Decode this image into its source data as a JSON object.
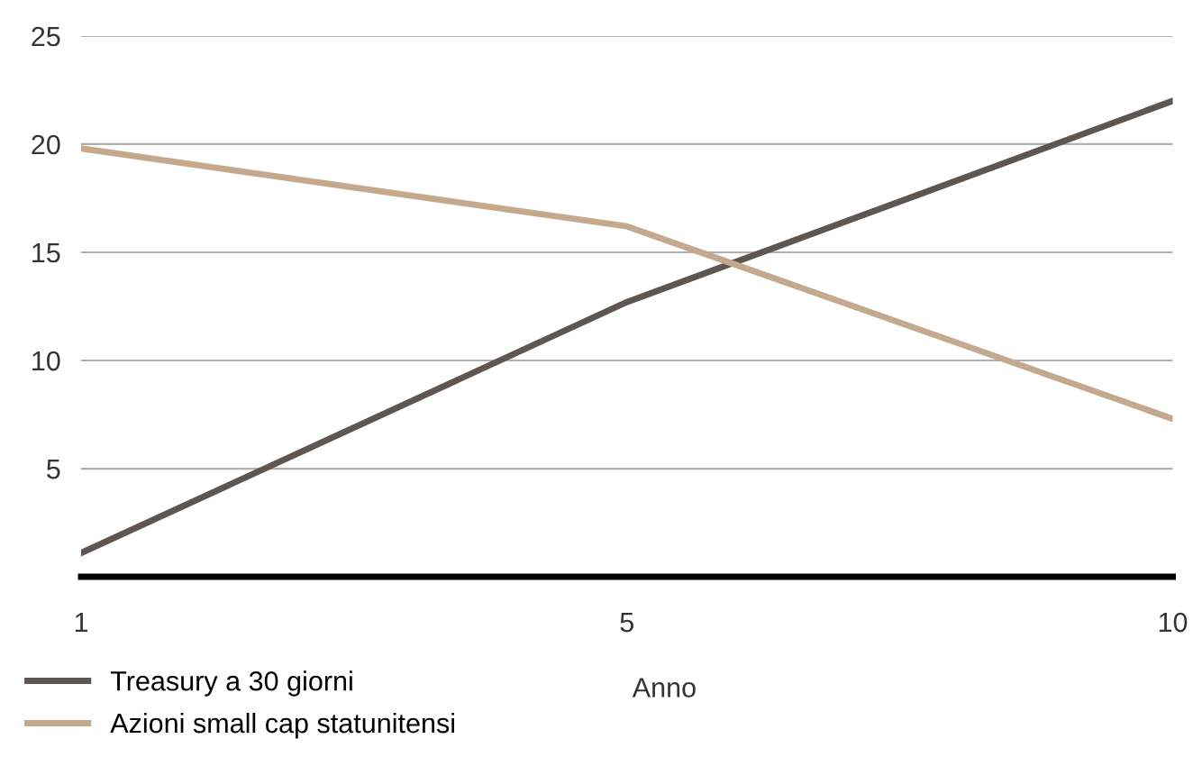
{
  "chart_data": {
    "type": "line",
    "xlabel": "Anno",
    "categories": [
      "1",
      "5",
      "10"
    ],
    "series": [
      {
        "name": "Treasury a 30 giorni",
        "color": "#5f5551",
        "values": [
          1.1,
          12.7,
          22
        ]
      },
      {
        "name": "Azioni small cap statunitensi",
        "color": "#c4a98f",
        "values": [
          19.8,
          16.2,
          7.3
        ]
      }
    ],
    "ylim": [
      0,
      25
    ],
    "yticks": [
      5,
      10,
      15,
      20,
      25
    ],
    "grid": "y",
    "legend": "bottom left",
    "marker": "none",
    "line_style": "solid"
  }
}
